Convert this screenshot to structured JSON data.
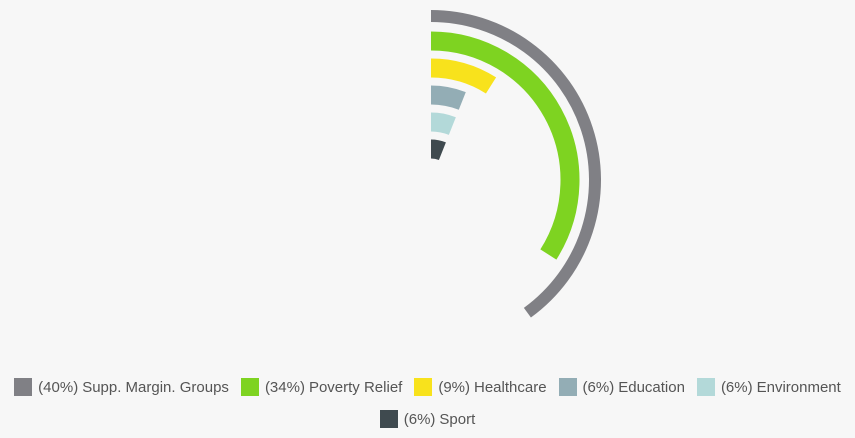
{
  "chart_data": {
    "type": "radialBar",
    "series": [
      {
        "name": "Supp. Margin. Groups",
        "color": "#808085",
        "values": [
          40
        ],
        "value_labels": [
          "(40%)"
        ]
      },
      {
        "name": "Poverty Relief",
        "color": "#7ed321",
        "values": [
          34
        ],
        "value_labels": [
          "(34%)"
        ]
      },
      {
        "name": "Healthcare",
        "color": "#f8e21c",
        "values": [
          9
        ],
        "value_labels": [
          "(9%)"
        ]
      },
      {
        "name": "Education",
        "color": "#93adb5",
        "values": [
          6
        ],
        "value_labels": [
          "(6%)"
        ]
      },
      {
        "name": "Environment",
        "color": "#b3d9d9",
        "values": [
          6
        ],
        "value_labels": [
          "(6%)"
        ]
      },
      {
        "name": "Sport",
        "color": "#3f4a4f",
        "values": [
          6
        ],
        "value_labels": [
          "(6%)"
        ]
      }
    ],
    "ylim": [
      0,
      100
    ]
  }
}
